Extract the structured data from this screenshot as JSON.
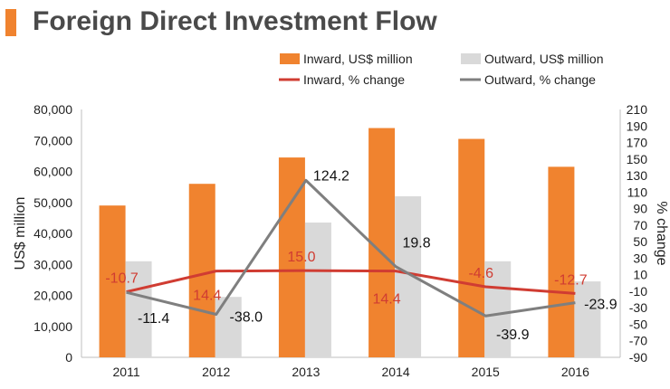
{
  "page": {
    "title": "Foreign Direct Investment Flow",
    "accent_color": "#f0832f"
  },
  "chart_data": {
    "type": "bar",
    "categories": [
      "2011",
      "2012",
      "2013",
      "2014",
      "2015",
      "2016"
    ],
    "ylabel": "US$ million",
    "ylabel_right": "% change",
    "ylim": [
      0,
      80000
    ],
    "ylim_right": [
      -90,
      210
    ],
    "yticks": [
      "0",
      "10,000",
      "20,000",
      "30,000",
      "40,000",
      "50,000",
      "60,000",
      "70,000",
      "80,000"
    ],
    "yticks_right": [
      "-90",
      "-70",
      "-50",
      "-30",
      "-10",
      "10",
      "30",
      "50",
      "70",
      "90",
      "110",
      "130",
      "150",
      "170",
      "190",
      "210"
    ],
    "grid": false,
    "legend_position": "top",
    "series": [
      {
        "name": "Inward, US$ million",
        "kind": "bar",
        "axis": "left",
        "color": "#f0832f",
        "values": [
          49000,
          56000,
          64500,
          74000,
          70500,
          61500
        ]
      },
      {
        "name": "Outward, US$ million",
        "kind": "bar",
        "axis": "left",
        "color": "#d9d9d9",
        "values": [
          31000,
          19500,
          43500,
          52000,
          31000,
          24500
        ]
      },
      {
        "name": "Inward, % change",
        "kind": "line",
        "axis": "right",
        "color": "#d03c32",
        "values": [
          -10.7,
          14.4,
          15.0,
          14.4,
          -4.6,
          -12.7
        ],
        "labels": [
          "-10.7",
          "14.4",
          "15.0",
          "14.4",
          "-4.6",
          "-12.7"
        ]
      },
      {
        "name": "Outward, % change",
        "kind": "line",
        "axis": "right",
        "color": "#7f7f7f",
        "values": [
          -11.4,
          -38.0,
          124.2,
          19.8,
          -39.9,
          -23.9
        ],
        "labels": [
          "-11.4",
          "-38.0",
          "124.2",
          "19.8",
          "-39.9",
          "-23.9"
        ]
      }
    ]
  }
}
